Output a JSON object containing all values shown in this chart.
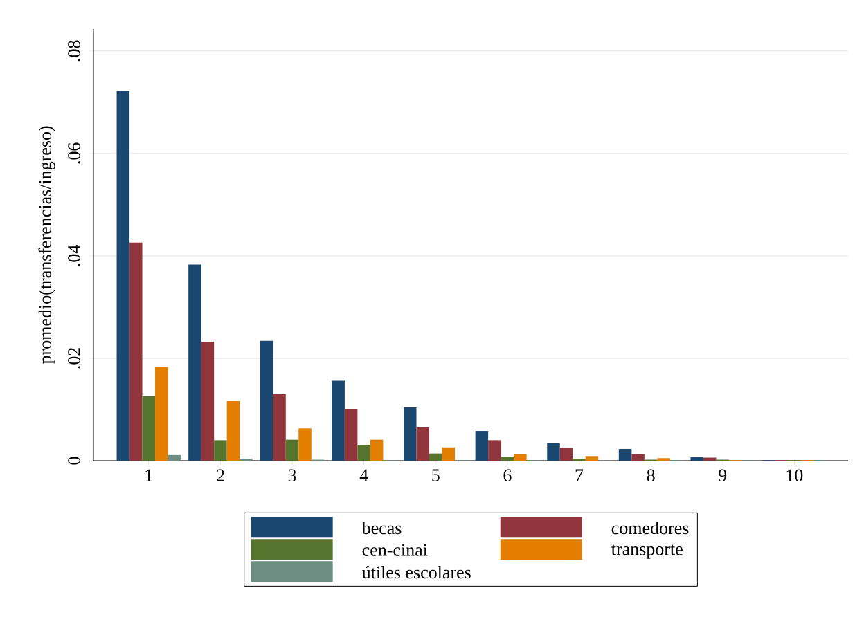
{
  "chart_data": {
    "type": "bar",
    "ylabel": "promedio(transferencias/ingreso)",
    "categories": [
      "1",
      "2",
      "3",
      "4",
      "5",
      "6",
      "7",
      "8",
      "9",
      "10"
    ],
    "series": [
      {
        "name": "becas",
        "color": "#1a476f",
        "values": [
          0.0722,
          0.0383,
          0.0234,
          0.0156,
          0.0104,
          0.0058,
          0.0034,
          0.0023,
          0.0007,
          0.0001
        ]
      },
      {
        "name": "comedores",
        "color": "#90353b",
        "values": [
          0.0426,
          0.0232,
          0.013,
          0.01,
          0.0065,
          0.004,
          0.0025,
          0.0013,
          0.0006,
          0.0001
        ]
      },
      {
        "name": "cen-cinai",
        "color": "#55752f",
        "values": [
          0.0126,
          0.004,
          0.0041,
          0.0031,
          0.0014,
          0.0008,
          0.0004,
          0.0002,
          0.0002,
          0.0001
        ]
      },
      {
        "name": "transporte",
        "color": "#e37e00",
        "values": [
          0.0183,
          0.0117,
          0.0063,
          0.0041,
          0.0026,
          0.0013,
          0.0009,
          0.0005,
          0.0001,
          0.0001
        ]
      },
      {
        "name": "útiles escolares",
        "color": "#6e8e84",
        "values": [
          0.0011,
          0.0004,
          0.0002,
          0.0001,
          0.0001,
          0.0001,
          0.0001,
          0.0001,
          0.0001,
          0.0001
        ]
      }
    ],
    "ylim": [
      0,
      0.0843
    ],
    "yticks": [
      {
        "value": 0,
        "label": "0"
      },
      {
        "value": 0.02,
        "label": ".02"
      },
      {
        "value": 0.04,
        "label": ".04"
      },
      {
        "value": 0.06,
        "label": ".06"
      },
      {
        "value": 0.08,
        "label": ".08"
      }
    ],
    "grid": "y",
    "legend": "bottom"
  }
}
